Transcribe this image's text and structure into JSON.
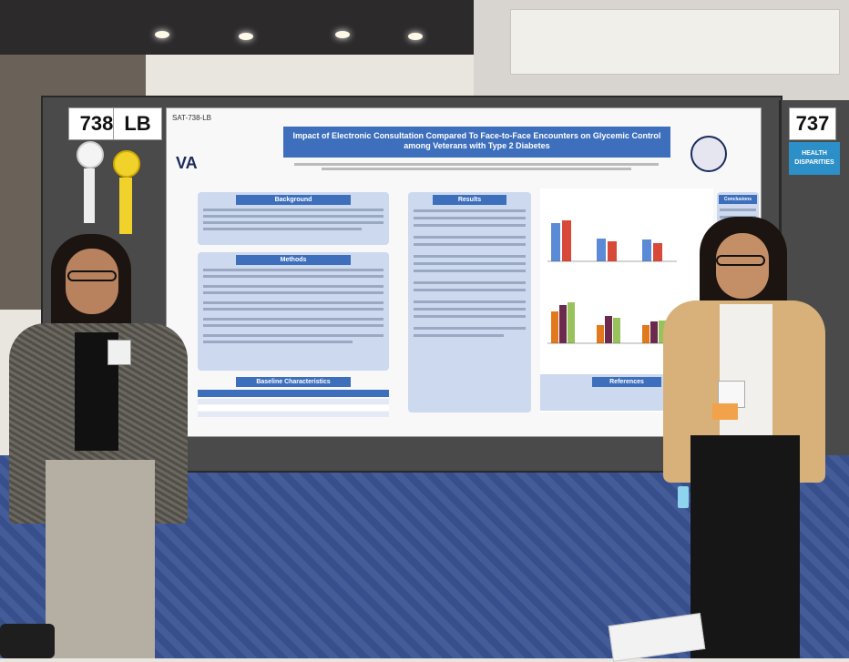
{
  "booth": {
    "number_left": "738",
    "suffix_left": "LB",
    "number_right": "737",
    "category_right": "HEALTH DISPARITIES"
  },
  "poster": {
    "id": "SAT-738-LB",
    "title": "Impact of Electronic Consultation Compared To Face-to-Face Encounters on Glycemic Control among Veterans with Type 2 Diabetes",
    "logo": "VA",
    "sections": {
      "background": "Background",
      "methods": "Methods",
      "baseline": "Baseline Characteristics",
      "results": "Results",
      "conclusions": "Conclusions",
      "references": "References"
    }
  },
  "colors": {
    "poster_blue": "#3d6fbd",
    "section_bg": "#cdd9ef",
    "floor": "#3a5393",
    "booth": "#4b4a4b"
  }
}
